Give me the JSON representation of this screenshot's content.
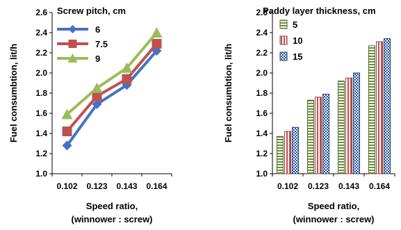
{
  "chart_data": [
    {
      "type": "line",
      "categories": [
        "0.102",
        "0.123",
        "0.143",
        "0.164"
      ],
      "legend_title": "Screw pitch, cm",
      "series": [
        {
          "name": "6",
          "values": [
            1.28,
            1.69,
            1.88,
            2.22
          ],
          "color": "#4472c4",
          "marker": "diamond"
        },
        {
          "name": "7.5",
          "values": [
            1.42,
            1.77,
            1.94,
            2.29
          ],
          "color": "#c0504d",
          "marker": "square"
        },
        {
          "name": "9",
          "values": [
            1.59,
            1.85,
            2.05,
            2.4
          ],
          "color": "#9bbb59",
          "marker": "triangle"
        }
      ],
      "xlabel": [
        "Speed ratio,",
        "(winnower : screw)"
      ],
      "ylabel": "Fuel consumbtion, lit/h",
      "ylim": [
        1.0,
        2.6
      ],
      "yticks": [
        "1.0",
        "1.2",
        "1.4",
        "1.6",
        "1.8",
        "2.0",
        "2.2",
        "2.4",
        "2.6"
      ],
      "grid": false,
      "legend_position": "top-left"
    },
    {
      "type": "bar",
      "categories": [
        "0.102",
        "0.123",
        "0.143",
        "0.164"
      ],
      "legend_title": "Paddy layer thickness, cm",
      "series": [
        {
          "name": "5",
          "values": [
            1.37,
            1.73,
            1.92,
            2.27
          ],
          "pattern": "horizontal-stripes-green"
        },
        {
          "name": "10",
          "values": [
            1.42,
            1.76,
            1.95,
            2.31
          ],
          "pattern": "vertical-stripes-red"
        },
        {
          "name": "15",
          "values": [
            1.46,
            1.79,
            2.0,
            2.34
          ],
          "pattern": "checker-blue"
        }
      ],
      "xlabel": [
        "Speed ratio,",
        "(winnower : screw)"
      ],
      "ylabel": "Fuel consumbtion, lit/h",
      "ylim": [
        1.0,
        2.6
      ],
      "yticks": [
        "1.0",
        "1.2",
        "1.4",
        "1.6",
        "1.8",
        "2.0",
        "2.2",
        "2.4",
        "2.6"
      ],
      "grid": false,
      "legend_position": "top-left"
    }
  ]
}
